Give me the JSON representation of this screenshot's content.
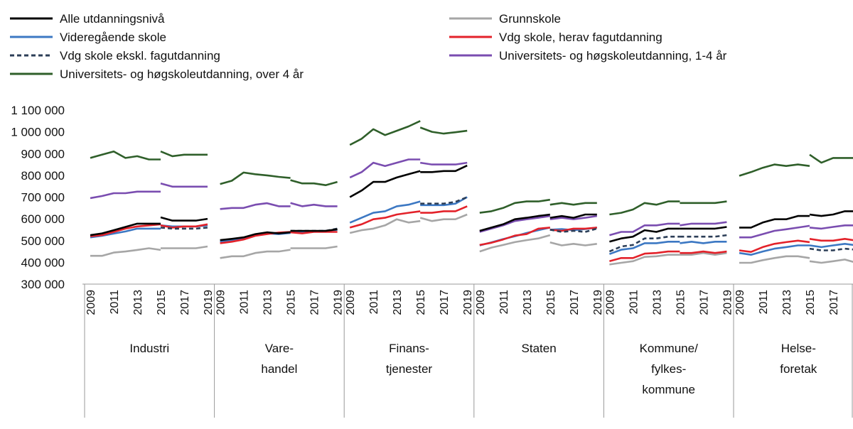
{
  "chart_data": {
    "type": "line",
    "y_ticks": [
      300000,
      400000,
      500000,
      600000,
      700000,
      800000,
      900000,
      1000000,
      1100000
    ],
    "y_tick_labels": [
      "300 000",
      "400 000",
      "500 000",
      "600 000",
      "700 000",
      "800 000",
      "900 000",
      "1 000 000",
      "1 100 000"
    ],
    "ylim": [
      300000,
      1100000
    ],
    "grid": false,
    "legend_position": "top",
    "years": [
      2009,
      2010,
      2011,
      2012,
      2013,
      2014,
      2015,
      2016,
      2017,
      2018,
      2019
    ],
    "year_labels": [
      "2009",
      "2011",
      "2013",
      "2015",
      "2017",
      "2019"
    ],
    "legend": [
      {
        "key": "alle",
        "label": "Alle utdanningsnivå"
      },
      {
        "key": "grunn",
        "label": "Grunnskole"
      },
      {
        "key": "vgs",
        "label": "Videregående skole"
      },
      {
        "key": "fag",
        "label": "Vdg skole, herav fagutdanning"
      },
      {
        "key": "ekskl",
        "label": "Vdg skole ekskl. fagutdanning"
      },
      {
        "key": "uni14",
        "label": "Universitets- og høgskoleutdanning, 1-4 år"
      },
      {
        "key": "uni4",
        "label": "Universitets- og høgskoleutdanning, over 4 år"
      }
    ],
    "series_style": {
      "alle": {
        "color": "#000000",
        "dash": false
      },
      "grunn": {
        "color": "#a6a6a6",
        "dash": false
      },
      "vgs": {
        "color": "#3c78c3",
        "dash": false
      },
      "fag": {
        "color": "#e3222a",
        "dash": false
      },
      "ekskl": {
        "color": "#2c3e57",
        "dash": true
      },
      "uni14": {
        "color": "#7a4db0",
        "dash": false
      },
      "uni4": {
        "color": "#2f5f2a",
        "dash": false
      }
    },
    "groups": [
      {
        "label": [
          "Industri"
        ],
        "series": {
          "uni4": [
            [
              880000,
              895000,
              910000,
              880000,
              888000,
              873000,
              873000
            ],
            [
              910000,
              888000,
              895000,
              895000,
              895000
            ]
          ],
          "uni14": [
            [
              695000,
              705000,
              718000,
              718000,
              725000,
              725000,
              725000
            ],
            [
              763000,
              748000,
              748000,
              748000,
              748000
            ]
          ],
          "alle": [
            [
              525000,
              533000,
              548000,
              563000,
              578000,
              578000,
              578000
            ],
            [
              607000,
              592000,
              592000,
              592000,
              600000
            ]
          ],
          "fag": [
            [
              520000,
              525000,
              540000,
              555000,
              565000,
              570000,
              575000
            ],
            [
              570000,
              560000,
              565000,
              565000,
              575000
            ]
          ],
          "ekskl": [
            [
              null,
              null,
              null,
              null,
              null,
              null,
              null
            ],
            [
              560000,
              555000,
              555000,
              555000,
              560000
            ]
          ],
          "vgs": [
            [
              515000,
              522000,
              532000,
              542000,
              555000,
              555000,
              555000
            ],
            [
              570000,
              565000,
              565000,
              565000,
              570000
            ]
          ],
          "grunn": [
            [
              430000,
              430000,
              445000,
              450000,
              457000,
              465000,
              457000
            ],
            [
              465000,
              465000,
              465000,
              465000,
              473000
            ]
          ]
        }
      },
      {
        "label": [
          "Vare-",
          "handel"
        ],
        "series": {
          "uni4": [
            [
              760000,
              775000,
              813000,
              805000,
              800000,
              793000,
              788000
            ],
            [
              778000,
              763000,
              763000,
              755000,
              770000
            ]
          ],
          "uni14": [
            [
              645000,
              650000,
              650000,
              665000,
              672000,
              658000,
              658000
            ],
            [
              673000,
              658000,
              665000,
              658000,
              658000
            ]
          ],
          "alle": [
            [
              502000,
              508000,
              515000,
              530000,
              538000,
              533000,
              538000
            ],
            [
              545000,
              545000,
              545000,
              545000,
              552000
            ]
          ],
          "fag": [
            [
              488000,
              495000,
              505000,
              522000,
              530000,
              537000,
              540000
            ],
            [
              538000,
              533000,
              540000,
              540000,
              540000
            ]
          ],
          "ekskl": [
            [
              null,
              null,
              null,
              null,
              null,
              null,
              null
            ],
            [
              545000,
              545000,
              545000,
              545000,
              555000
            ]
          ],
          "vgs": [
            [
              495000,
              502000,
              510000,
              525000,
              533000,
              530000,
              535000
            ],
            [
              540000,
              540000,
              543000,
              545000,
              550000
            ]
          ],
          "grunn": [
            [
              420000,
              428000,
              428000,
              443000,
              450000,
              450000,
              458000
            ],
            [
              465000,
              465000,
              465000,
              465000,
              473000
            ]
          ]
        }
      },
      {
        "label": [
          "Finans-",
          "tjenester"
        ],
        "series": {
          "uni4": [
            [
              940000,
              968000,
              1012000,
              985000,
              1005000,
              1025000,
              1050000
            ],
            [
              1020000,
              1000000,
              992000,
              998000,
              1005000
            ]
          ],
          "uni14": [
            [
              790000,
              815000,
              858000,
              843000,
              858000,
              873000,
              873000
            ],
            [
              858000,
              850000,
              850000,
              850000,
              858000
            ]
          ],
          "alle": [
            [
              700000,
              730000,
              770000,
              770000,
              790000,
              805000,
              820000
            ],
            [
              815000,
              815000,
              820000,
              820000,
              845000
            ]
          ],
          "ekskl": [
            [
              null,
              null,
              null,
              null,
              null,
              null,
              null
            ],
            [
              670000,
              670000,
              670000,
              678000,
              700000
            ]
          ],
          "vgs": [
            [
              582000,
              605000,
              628000,
              635000,
              658000,
              665000,
              680000
            ],
            [
              663000,
              663000,
              663000,
              670000,
              700000
            ]
          ],
          "fag": [
            [
              560000,
              575000,
              598000,
              605000,
              620000,
              628000,
              635000
            ],
            [
              628000,
              628000,
              635000,
              635000,
              658000
            ]
          ],
          "grunn": [
            [
              535000,
              548000,
              555000,
              570000,
              598000,
              583000,
              590000
            ],
            [
              605000,
              590000,
              598000,
              598000,
              620000
            ]
          ]
        }
      },
      {
        "label": [
          "Staten"
        ],
        "series": {
          "uni4": [
            [
              628000,
              635000,
              650000,
              673000,
              680000,
              680000,
              688000
            ],
            [
              665000,
              673000,
              665000,
              673000,
              673000
            ]
          ],
          "alle": [
            [
              545000,
              560000,
              575000,
              598000,
              605000,
              613000,
              620000
            ],
            [
              605000,
              613000,
              605000,
              620000,
              620000
            ]
          ],
          "uni14": [
            [
              540000,
              555000,
              570000,
              590000,
              598000,
              605000,
              613000
            ],
            [
              598000,
              605000,
              598000,
              605000,
              613000
            ]
          ],
          "ekskl": [
            [
              null,
              null,
              null,
              null,
              null,
              null,
              null
            ],
            [
              550000,
              540000,
              545000,
              540000,
              555000
            ]
          ],
          "fag": [
            [
              480000,
              490000,
              505000,
              523000,
              530000,
              555000,
              560000
            ],
            [
              550000,
              545000,
              555000,
              555000,
              560000
            ]
          ],
          "vgs": [
            [
              478000,
              492000,
              507000,
              520000,
              535000,
              548000,
              560000
            ],
            [
              550000,
              553000,
              548000,
              553000,
              560000
            ]
          ],
          "grunn": [
            [
              450000,
              468000,
              480000,
              493000,
              502000,
              510000,
              525000
            ],
            [
              492000,
              478000,
              485000,
              478000,
              485000
            ]
          ]
        }
      },
      {
        "label": [
          "Kommune/",
          "fylkes-",
          "kommune"
        ],
        "series": {
          "uni4": [
            [
              620000,
              628000,
              643000,
              673000,
              665000,
              680000,
              680000
            ],
            [
              673000,
              673000,
              673000,
              673000,
              680000
            ]
          ],
          "uni14": [
            [
              525000,
              540000,
              540000,
              570000,
              570000,
              578000,
              578000
            ],
            [
              570000,
              578000,
              578000,
              578000,
              585000
            ]
          ],
          "alle": [
            [
              495000,
              510000,
              518000,
              548000,
              540000,
              555000,
              555000
            ],
            [
              555000,
              555000,
              555000,
              555000,
              563000
            ]
          ],
          "ekskl": [
            [
              450000,
              473000,
              480000,
              510000,
              510000,
              518000,
              518000
            ],
            [
              518000,
              518000,
              518000,
              518000,
              525000
            ]
          ],
          "vgs": [
            [
              438000,
              458000,
              465000,
              488000,
              488000,
              495000,
              495000
            ],
            [
              488000,
              495000,
              488000,
              495000,
              495000
            ]
          ],
          "fag": [
            [
              405000,
              420000,
              420000,
              440000,
              443000,
              450000,
              450000
            ],
            [
              443000,
              443000,
              450000,
              443000,
              450000
            ]
          ],
          "grunn": [
            [
              390000,
              398000,
              405000,
              425000,
              428000,
              435000,
              435000
            ],
            [
              435000,
              435000,
              443000,
              435000,
              443000
            ]
          ]
        }
      },
      {
        "label": [
          "Helse-",
          "foretak"
        ],
        "series": {
          "uni4": [
            [
              798000,
              815000,
              835000,
              850000,
              843000,
              850000,
              843000
            ],
            [
              895000,
              858000,
              880000,
              880000,
              880000
            ]
          ],
          "alle": [
            [
              560000,
              560000,
              583000,
              598000,
              598000,
              613000,
              613000
            ],
            [
              620000,
              613000,
              620000,
              635000,
              635000
            ]
          ],
          "uni14": [
            [
              515000,
              515000,
              530000,
              545000,
              552000,
              560000,
              568000
            ],
            [
              560000,
              555000,
              563000,
              570000,
              570000
            ]
          ],
          "fag": [
            [
              455000,
              448000,
              470000,
              485000,
              493000,
              500000,
              493000
            ],
            [
              508000,
              500000,
              500000,
              508000,
              500000
            ]
          ],
          "ekskl": [
            [
              null,
              null,
              null,
              null,
              null,
              null,
              null
            ],
            [
              463000,
              455000,
              455000,
              463000,
              458000
            ]
          ],
          "vgs": [
            [
              443000,
              435000,
              450000,
              463000,
              470000,
              478000,
              478000
            ],
            [
              478000,
              470000,
              478000,
              485000,
              478000
            ]
          ],
          "grunn": [
            [
              398000,
              398000,
              410000,
              420000,
              428000,
              428000,
              420000
            ],
            [
              405000,
              398000,
              405000,
              413000,
              398000
            ]
          ]
        }
      }
    ]
  }
}
